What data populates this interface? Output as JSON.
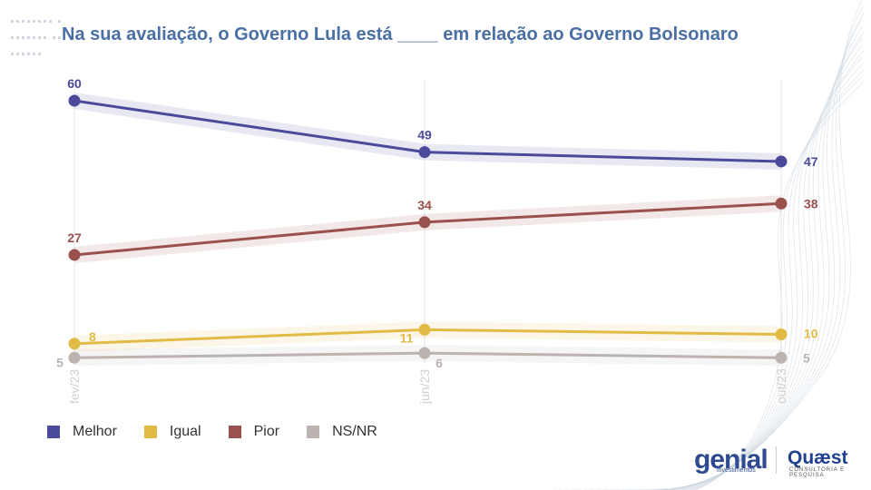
{
  "title": "Na sua avaliação, o Governo Lula está ____ em relação ao Governo Bolsonaro",
  "legend": [
    {
      "label": "Melhor",
      "color": "#4b4a9a"
    },
    {
      "label": "Igual",
      "color": "#e2bb45"
    },
    {
      "label": "Pior",
      "color": "#9a514e"
    },
    {
      "label": "NS/NR",
      "color": "#bab3af"
    }
  ],
  "chart_data": {
    "type": "line",
    "title": "Na sua avaliação, o Governo Lula está ____ em relação ao Governo Bolsonaro",
    "categories": [
      "fev/23",
      "jun/23",
      "out/23"
    ],
    "series": [
      {
        "name": "Melhor",
        "values": [
          60,
          49,
          47
        ],
        "color": "#4b4a9a"
      },
      {
        "name": "Pior",
        "values": [
          27,
          34,
          38
        ],
        "color": "#9a514e"
      },
      {
        "name": "Igual",
        "values": [
          8,
          11,
          10
        ],
        "color": "#e2bb45"
      },
      {
        "name": "NS/NR",
        "values": [
          5,
          6,
          5
        ],
        "color": "#bab3af"
      }
    ],
    "ylim": [
      0,
      65
    ],
    "grid": "vertical",
    "legend_position": "bottom-left"
  },
  "logos": {
    "genial": "genial",
    "genial_sub": "investimentos",
    "quaest": "Quæst",
    "quaest_sub": "CONSULTORIA E PESQUISA"
  }
}
